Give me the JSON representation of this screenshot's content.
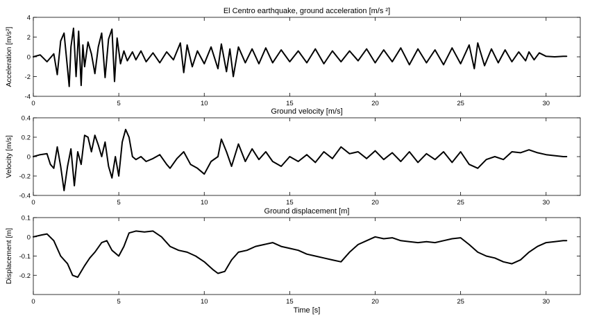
{
  "figure": {
    "background": "#ffffff",
    "line_color": "#000000",
    "x_tick_labels": [
      "0",
      "5",
      "10",
      "15",
      "20",
      "25",
      "30"
    ]
  },
  "chart_data": [
    {
      "type": "line",
      "title": "El Centro earthquake, ground acceleration [m/s ²]",
      "xlabel": "",
      "ylabel": "Acceleration [m/s²]",
      "xlim": [
        0,
        32
      ],
      "ylim": [
        -4,
        4
      ],
      "x_ticks": [
        0,
        5,
        10,
        15,
        20,
        25,
        30
      ],
      "y_ticks": [
        -4,
        -2,
        0,
        2,
        4
      ],
      "y_tick_labels": [
        "-4",
        "-2",
        "0",
        "2",
        "4"
      ],
      "grid": false,
      "x": [
        0,
        0.4,
        0.8,
        1.2,
        1.4,
        1.6,
        1.8,
        2.0,
        2.1,
        2.2,
        2.35,
        2.5,
        2.65,
        2.8,
        2.9,
        3.0,
        3.2,
        3.4,
        3.6,
        3.8,
        4.0,
        4.2,
        4.4,
        4.6,
        4.75,
        4.9,
        5.1,
        5.3,
        5.5,
        5.8,
        6.0,
        6.3,
        6.6,
        7.0,
        7.4,
        7.8,
        8.2,
        8.6,
        8.8,
        9.0,
        9.3,
        9.6,
        10.0,
        10.4,
        10.8,
        11.0,
        11.3,
        11.5,
        11.7,
        12.0,
        12.4,
        12.8,
        13.2,
        13.6,
        14.0,
        14.5,
        15.0,
        15.5,
        16.0,
        16.5,
        17.0,
        17.5,
        18.0,
        18.5,
        19.0,
        19.5,
        20.0,
        20.5,
        21.0,
        21.5,
        22.0,
        22.5,
        23.0,
        23.5,
        24.0,
        24.5,
        25.0,
        25.5,
        25.8,
        26.0,
        26.4,
        26.8,
        27.2,
        27.6,
        28.0,
        28.4,
        28.8,
        29.0,
        29.3,
        29.6,
        30.0,
        30.5,
        31.0,
        31.2
      ],
      "series": [
        {
          "values": [
            0.0,
            0.2,
            -0.5,
            0.3,
            -1.8,
            1.6,
            2.4,
            -1.2,
            -3.0,
            1.0,
            2.9,
            -2.0,
            2.6,
            -2.9,
            1.2,
            -1.0,
            1.5,
            0.3,
            -1.7,
            1.0,
            2.4,
            -2.1,
            1.8,
            2.8,
            -2.5,
            1.9,
            -0.7,
            0.6,
            -0.4,
            0.5,
            -0.3,
            0.6,
            -0.5,
            0.4,
            -0.6,
            0.5,
            -0.3,
            1.4,
            -1.6,
            1.2,
            -1.0,
            0.6,
            -0.7,
            1.0,
            -1.2,
            1.3,
            -1.5,
            0.8,
            -2.0,
            1.0,
            -0.6,
            0.8,
            -0.7,
            0.9,
            -0.6,
            0.7,
            -0.5,
            0.6,
            -0.6,
            0.8,
            -0.7,
            0.6,
            -0.5,
            0.6,
            -0.4,
            0.8,
            -0.6,
            0.7,
            -0.5,
            0.9,
            -0.8,
            0.8,
            -0.6,
            0.7,
            -0.8,
            0.9,
            -0.7,
            1.2,
            -1.2,
            1.4,
            -0.9,
            0.8,
            -0.6,
            0.7,
            -0.5,
            0.5,
            -0.4,
            0.5,
            -0.3,
            0.4,
            0.05,
            0.0,
            0.05,
            0.05
          ]
        }
      ]
    },
    {
      "type": "line",
      "title": "Ground velocity [m/s]",
      "xlabel": "",
      "ylabel": "Velocity [m/s]",
      "xlim": [
        0,
        32
      ],
      "ylim": [
        -0.4,
        0.4
      ],
      "x_ticks": [
        0,
        5,
        10,
        15,
        20,
        25,
        30
      ],
      "y_ticks": [
        -0.4,
        -0.2,
        0,
        0.2,
        0.4
      ],
      "y_tick_labels": [
        "-0.4",
        "-0.2",
        "0",
        "0.2",
        "0.4"
      ],
      "grid": false,
      "x": [
        0,
        0.4,
        0.8,
        1.0,
        1.2,
        1.4,
        1.6,
        1.8,
        2.0,
        2.2,
        2.4,
        2.6,
        2.8,
        3.0,
        3.2,
        3.4,
        3.6,
        3.8,
        4.0,
        4.2,
        4.4,
        4.6,
        4.8,
        5.0,
        5.2,
        5.4,
        5.6,
        5.8,
        6.0,
        6.3,
        6.6,
        7.0,
        7.4,
        7.8,
        8.0,
        8.4,
        8.8,
        9.2,
        9.6,
        10.0,
        10.4,
        10.8,
        11.0,
        11.3,
        11.6,
        12.0,
        12.4,
        12.8,
        13.2,
        13.6,
        14.0,
        14.5,
        15.0,
        15.5,
        16.0,
        16.5,
        17.0,
        17.5,
        18.0,
        18.5,
        19.0,
        19.5,
        20.0,
        20.5,
        21.0,
        21.5,
        22.0,
        22.5,
        23.0,
        23.5,
        24.0,
        24.5,
        25.0,
        25.5,
        26.0,
        26.5,
        27.0,
        27.5,
        28.0,
        28.5,
        29.0,
        29.5,
        30.0,
        30.5,
        31.0,
        31.2
      ],
      "series": [
        {
          "values": [
            0.0,
            0.02,
            0.03,
            -0.08,
            -0.12,
            0.1,
            -0.1,
            -0.35,
            -0.1,
            0.08,
            -0.3,
            0.05,
            -0.08,
            0.22,
            0.2,
            0.05,
            0.22,
            0.12,
            0.0,
            0.15,
            -0.1,
            -0.22,
            0.0,
            -0.2,
            0.15,
            0.28,
            0.2,
            0.0,
            -0.03,
            0.0,
            -0.05,
            -0.02,
            0.02,
            -0.08,
            -0.12,
            -0.02,
            0.05,
            -0.08,
            -0.12,
            -0.18,
            -0.05,
            0.0,
            0.18,
            0.05,
            -0.1,
            0.13,
            -0.05,
            0.08,
            -0.03,
            0.05,
            -0.05,
            -0.1,
            0.0,
            -0.05,
            0.02,
            -0.06,
            0.05,
            -0.02,
            0.1,
            0.03,
            0.05,
            -0.02,
            0.06,
            -0.03,
            0.04,
            -0.05,
            0.05,
            -0.06,
            0.03,
            -0.03,
            0.05,
            -0.06,
            0.05,
            -0.08,
            -0.12,
            -0.03,
            0.0,
            -0.03,
            0.05,
            0.04,
            0.07,
            0.04,
            0.02,
            0.01,
            0.0,
            0.0
          ]
        }
      ]
    },
    {
      "type": "line",
      "title": "Ground displacement [m]",
      "xlabel": "Time [s]",
      "ylabel": "Displacement [m]",
      "xlim": [
        0,
        32
      ],
      "ylim": [
        -0.3,
        0.1
      ],
      "x_ticks": [
        0,
        5,
        10,
        15,
        20,
        25,
        30
      ],
      "y_ticks": [
        -0.2,
        -0.1,
        0,
        0.1
      ],
      "y_tick_labels": [
        "-0.2",
        "-0.1",
        "0",
        "0.1"
      ],
      "grid": false,
      "x": [
        0,
        0.5,
        0.8,
        1.2,
        1.6,
        2.0,
        2.3,
        2.6,
        3.0,
        3.3,
        3.6,
        4.0,
        4.3,
        4.6,
        5.0,
        5.3,
        5.6,
        6.0,
        6.5,
        7.0,
        7.5,
        8.0,
        8.5,
        9.0,
        9.5,
        10.0,
        10.5,
        10.8,
        11.2,
        11.6,
        12.0,
        12.5,
        13.0,
        13.5,
        14.0,
        14.5,
        15.0,
        15.5,
        16.0,
        16.5,
        17.0,
        17.5,
        18.0,
        18.5,
        19.0,
        19.5,
        20.0,
        20.5,
        21.0,
        21.5,
        22.0,
        22.5,
        23.0,
        23.5,
        24.0,
        24.5,
        25.0,
        25.5,
        26.0,
        26.5,
        27.0,
        27.5,
        28.0,
        28.5,
        29.0,
        29.5,
        30.0,
        30.5,
        31.0,
        31.2
      ],
      "series": [
        {
          "values": [
            0.0,
            0.01,
            0.015,
            -0.02,
            -0.1,
            -0.14,
            -0.2,
            -0.21,
            -0.15,
            -0.11,
            -0.08,
            -0.03,
            -0.02,
            -0.07,
            -0.1,
            -0.05,
            0.02,
            0.03,
            0.025,
            0.03,
            0.0,
            -0.05,
            -0.07,
            -0.08,
            -0.1,
            -0.13,
            -0.17,
            -0.19,
            -0.18,
            -0.12,
            -0.08,
            -0.07,
            -0.05,
            -0.04,
            -0.03,
            -0.05,
            -0.06,
            -0.07,
            -0.09,
            -0.1,
            -0.11,
            -0.12,
            -0.13,
            -0.08,
            -0.04,
            -0.02,
            0.0,
            -0.01,
            -0.005,
            -0.02,
            -0.025,
            -0.03,
            -0.025,
            -0.03,
            -0.02,
            -0.01,
            -0.005,
            -0.04,
            -0.08,
            -0.1,
            -0.11,
            -0.13,
            -0.14,
            -0.12,
            -0.08,
            -0.05,
            -0.03,
            -0.025,
            -0.02,
            -0.02
          ]
        }
      ]
    }
  ]
}
